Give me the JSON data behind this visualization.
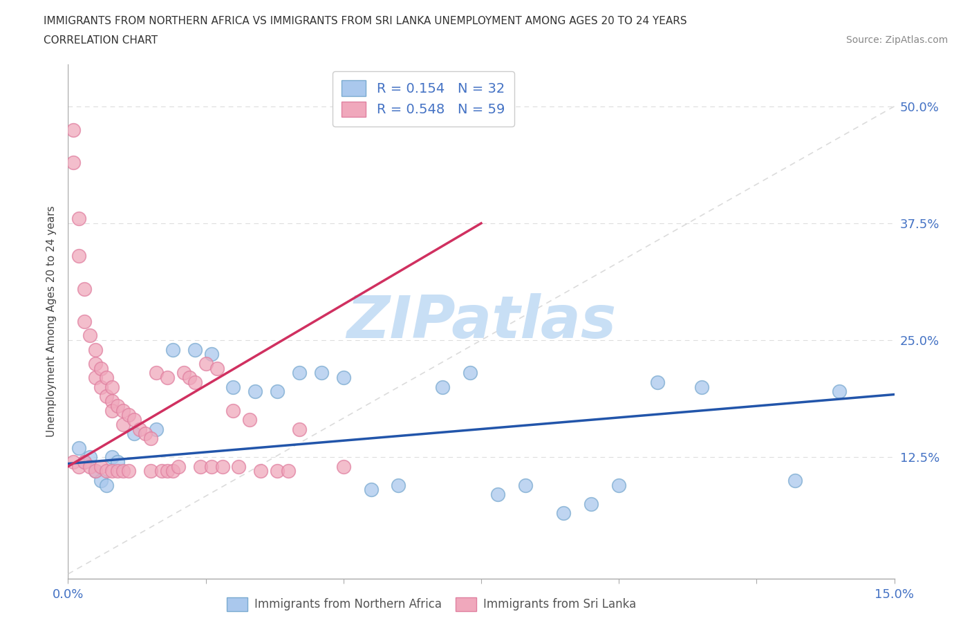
{
  "title_line1": "IMMIGRANTS FROM NORTHERN AFRICA VS IMMIGRANTS FROM SRI LANKA UNEMPLOYMENT AMONG AGES 20 TO 24 YEARS",
  "title_line2": "CORRELATION CHART",
  "source_text": "Source: ZipAtlas.com",
  "ylabel_text": "Unemployment Among Ages 20 to 24 years",
  "xlim": [
    0.0,
    0.15
  ],
  "ylim": [
    -0.005,
    0.545
  ],
  "blue_color": "#aac8ed",
  "pink_color": "#f0a8bc",
  "blue_edge_color": "#7aaad0",
  "pink_edge_color": "#e080a0",
  "blue_line_color": "#2255aa",
  "pink_line_color": "#d03060",
  "diag_line_color": "#cccccc",
  "grid_color": "#dddddd",
  "watermark_color": "#c8dff5",
  "legend_R1": "R = 0.154",
  "legend_N1": "N = 32",
  "legend_R2": "R = 0.548",
  "legend_N2": "N = 59",
  "blue_line_x0": 0.0,
  "blue_line_y0": 0.118,
  "blue_line_x1": 0.15,
  "blue_line_y1": 0.192,
  "pink_line_x0": 0.0,
  "pink_line_y0": 0.115,
  "pink_line_x1": 0.075,
  "pink_line_y1": 0.375,
  "blue_x": [
    0.002,
    0.003,
    0.004,
    0.005,
    0.006,
    0.007,
    0.008,
    0.009,
    0.012,
    0.016,
    0.019,
    0.023,
    0.026,
    0.03,
    0.034,
    0.038,
    0.042,
    0.046,
    0.05,
    0.055,
    0.06,
    0.068,
    0.073,
    0.078,
    0.083,
    0.09,
    0.095,
    0.1,
    0.107,
    0.115,
    0.132,
    0.14
  ],
  "blue_y": [
    0.135,
    0.12,
    0.125,
    0.11,
    0.1,
    0.095,
    0.125,
    0.12,
    0.15,
    0.155,
    0.24,
    0.24,
    0.235,
    0.2,
    0.195,
    0.195,
    0.215,
    0.215,
    0.21,
    0.09,
    0.095,
    0.2,
    0.215,
    0.085,
    0.095,
    0.065,
    0.075,
    0.095,
    0.205,
    0.2,
    0.1,
    0.195
  ],
  "pink_x": [
    0.001,
    0.001,
    0.001,
    0.002,
    0.002,
    0.002,
    0.003,
    0.003,
    0.003,
    0.004,
    0.004,
    0.005,
    0.005,
    0.005,
    0.005,
    0.006,
    0.006,
    0.006,
    0.007,
    0.007,
    0.007,
    0.008,
    0.008,
    0.008,
    0.008,
    0.009,
    0.009,
    0.01,
    0.01,
    0.01,
    0.011,
    0.011,
    0.012,
    0.013,
    0.014,
    0.015,
    0.015,
    0.016,
    0.017,
    0.018,
    0.018,
    0.019,
    0.02,
    0.021,
    0.022,
    0.023,
    0.024,
    0.025,
    0.026,
    0.027,
    0.028,
    0.03,
    0.031,
    0.033,
    0.035,
    0.038,
    0.04,
    0.042,
    0.05
  ],
  "pink_y": [
    0.475,
    0.44,
    0.12,
    0.38,
    0.34,
    0.115,
    0.305,
    0.27,
    0.12,
    0.255,
    0.115,
    0.24,
    0.225,
    0.21,
    0.11,
    0.22,
    0.2,
    0.115,
    0.21,
    0.19,
    0.11,
    0.2,
    0.185,
    0.175,
    0.11,
    0.18,
    0.11,
    0.175,
    0.16,
    0.11,
    0.17,
    0.11,
    0.165,
    0.155,
    0.15,
    0.145,
    0.11,
    0.215,
    0.11,
    0.21,
    0.11,
    0.11,
    0.115,
    0.215,
    0.21,
    0.205,
    0.115,
    0.225,
    0.115,
    0.22,
    0.115,
    0.175,
    0.115,
    0.165,
    0.11,
    0.11,
    0.11,
    0.155,
    0.115
  ]
}
